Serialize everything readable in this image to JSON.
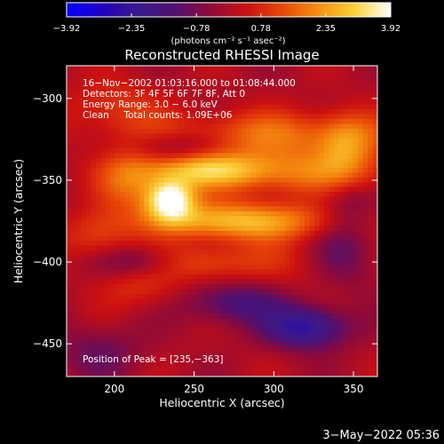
{
  "chart_data": {
    "type": "heatmap",
    "title": "Reconstructed RHESSI Image",
    "xlabel": "Heliocentric X (arcsec)",
    "ylabel": "Heliocentric Y (arcsec)",
    "xlim": [
      170,
      365
    ],
    "ylim": [
      -470,
      -280
    ],
    "x_ticks": [
      200,
      250,
      300,
      350
    ],
    "x_tick_labels": [
      "200",
      "250",
      "300",
      "350"
    ],
    "y_ticks": [
      -300,
      -350,
      -400,
      -450
    ],
    "y_tick_labels": [
      "−300",
      "−350",
      "−400",
      "−450"
    ],
    "colorbar": {
      "label": "(photons cm⁻² s⁻¹ asec⁻²)",
      "range": [
        -3.92,
        3.92
      ],
      "tick_values": [
        -3.92,
        -2.35,
        -0.78,
        0.78,
        2.35,
        3.92
      ],
      "tick_labels": [
        "−3.92",
        "−2.35",
        "−0.78",
        "0.78",
        "2.35",
        "3.92"
      ],
      "colors": [
        "#0000ff",
        "#2200c0",
        "#3a1a8a",
        "#501070",
        "#900a38",
        "#cc1010",
        "#e84808",
        "#f59010",
        "#fad23a",
        "#ffffff"
      ]
    },
    "annotations": [
      "16−Nov−2002 01:03:16.000 to 01:08:44.000",
      "Detectors: 3F 4F 5F 6F 7F 8F, Att 0",
      "Energy Range: 3.0 − 6.0 keV",
      "Clean     Total counts: 1.09E+06",
      "Position of Peak = [235,−363]"
    ],
    "peak": {
      "x": 235,
      "y": -363,
      "value": 3.92
    },
    "features": [
      {
        "x": 235,
        "y": -362,
        "sigma_x": 11,
        "sigma_y": 9,
        "amp": 3.9
      },
      {
        "x": 278,
        "y": -375,
        "sigma_x": 40,
        "sigma_y": 8,
        "amp": 2.7
      },
      {
        "x": 300,
        "y": -345,
        "sigma_x": 50,
        "sigma_y": 10,
        "amp": 1.9
      },
      {
        "x": 255,
        "y": -343,
        "sigma_x": 24,
        "sigma_y": 7,
        "amp": 1.7
      },
      {
        "x": 300,
        "y": -322,
        "sigma_x": 55,
        "sigma_y": 10,
        "amp": 1.6
      },
      {
        "x": 210,
        "y": -350,
        "sigma_x": 14,
        "sigma_y": 14,
        "amp": 1.5
      },
      {
        "x": 200,
        "y": -305,
        "sigma_x": 20,
        "sigma_y": 12,
        "amp": 1.0
      },
      {
        "x": 345,
        "y": -330,
        "sigma_x": 12,
        "sigma_y": 14,
        "amp": 1.4
      },
      {
        "x": 190,
        "y": -385,
        "sigma_x": 15,
        "sigma_y": 10,
        "amp": 1.1
      },
      {
        "x": 255,
        "y": -400,
        "sigma_x": 20,
        "sigma_y": 8,
        "amp": 1.2
      },
      {
        "x": 218,
        "y": -415,
        "sigma_x": 18,
        "sigma_y": 10,
        "amp": 0.9
      },
      {
        "x": 300,
        "y": -400,
        "sigma_x": 25,
        "sigma_y": 12,
        "amp": 0.6
      },
      {
        "x": 320,
        "y": -440,
        "sigma_x": 18,
        "sigma_y": 9,
        "amp": -2.6
      },
      {
        "x": 275,
        "y": -425,
        "sigma_x": 22,
        "sigma_y": 9,
        "amp": -1.6
      },
      {
        "x": 240,
        "y": -330,
        "sigma_x": 22,
        "sigma_y": 7,
        "amp": -1.2
      },
      {
        "x": 215,
        "y": -400,
        "sigma_x": 18,
        "sigma_y": 7,
        "amp": -1.1
      },
      {
        "x": 345,
        "y": -395,
        "sigma_x": 14,
        "sigma_y": 14,
        "amp": -1.0
      },
      {
        "x": 345,
        "y": -365,
        "sigma_x": 12,
        "sigma_y": 12,
        "amp": -0.8
      },
      {
        "x": 190,
        "y": -455,
        "sigma_x": 20,
        "sigma_y": 12,
        "amp": -0.9
      }
    ],
    "grid": false
  },
  "footer": {
    "date": "3−May−2022 05:36"
  }
}
